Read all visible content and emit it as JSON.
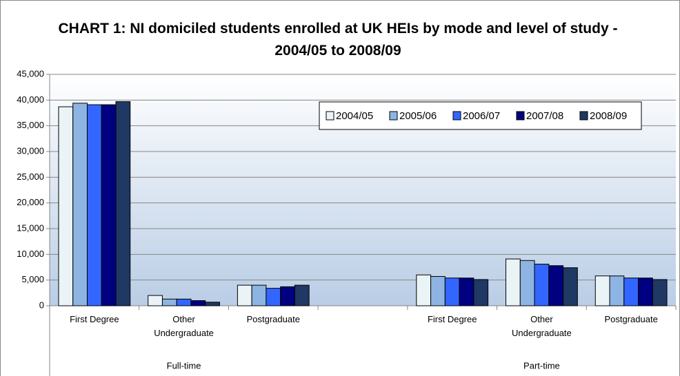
{
  "chart_data": {
    "type": "bar",
    "title": "CHART 1: NI domiciled students enrolled at UK HEIs by mode and level of study - 2004/05 to 2008/09",
    "categories": [
      "First Degree",
      "Other Undergraduate",
      "Postgraduate",
      null,
      "First Degree",
      "Other Undergraduate",
      "Postgraduate"
    ],
    "groups": [
      "Full-time",
      "Part-time"
    ],
    "series": [
      {
        "name": "2004/05",
        "color": "#eaf4f7",
        "values": [
          38700,
          2000,
          4000,
          null,
          6000,
          9100,
          5800
        ]
      },
      {
        "name": "2005/06",
        "color": "#8db4e2",
        "values": [
          39400,
          1300,
          4000,
          null,
          5700,
          8800,
          5800
        ]
      },
      {
        "name": "2006/07",
        "color": "#3366ff",
        "values": [
          39100,
          1300,
          3400,
          null,
          5400,
          8100,
          5400
        ]
      },
      {
        "name": "2007/08",
        "color": "#000080",
        "values": [
          39100,
          1000,
          3700,
          null,
          5400,
          7800,
          5400
        ]
      },
      {
        "name": "2008/09",
        "color": "#1f3864",
        "values": [
          39700,
          700,
          4000,
          null,
          5100,
          7400,
          5100
        ]
      }
    ],
    "ylim": [
      0,
      45000
    ],
    "yticks": [
      0,
      {
        "value": 5000,
        "label": "5,000"
      },
      {
        "value": 10000,
        "label": "10,000"
      },
      {
        "value": 15000,
        "label": "15,000"
      },
      {
        "value": 20000,
        "label": "20,000"
      },
      {
        "value": 25000,
        "label": "25,000"
      },
      {
        "value": 30000,
        "label": "30,000"
      },
      {
        "value": 35000,
        "label": "35,000"
      },
      {
        "value": 40000,
        "label": "40,000"
      },
      {
        "value": 45000,
        "label": "45,000"
      }
    ],
    "grid": true,
    "legend": "top-right"
  }
}
